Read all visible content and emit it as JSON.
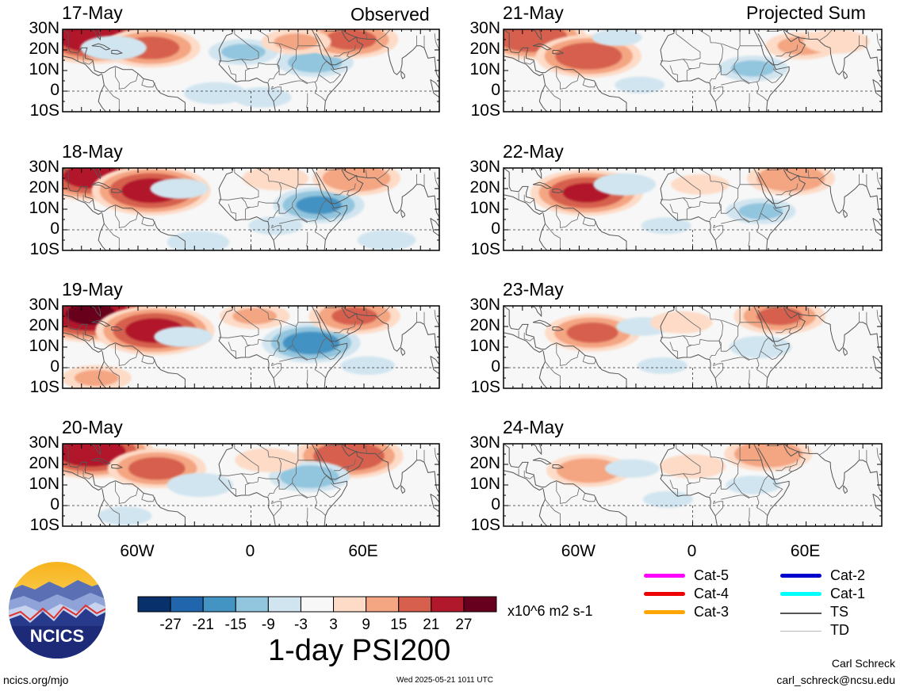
{
  "headers": {
    "left": "Observed",
    "right": "Projected Sum"
  },
  "lat_labels": [
    "30N",
    "20N",
    "10N",
    "0",
    "10S"
  ],
  "lon_labels": [
    "60W",
    "0",
    "60E"
  ],
  "panels": [
    {
      "date": "17-May",
      "blobs": [
        {
          "lon": -84,
          "lat": 26,
          "v": 25
        },
        {
          "lon": -53,
          "lat": 21,
          "v": 17
        },
        {
          "lon": -4,
          "lat": 19,
          "v": -9
        },
        {
          "lon": 34,
          "lat": 14,
          "v": -11
        },
        {
          "lon": 53,
          "lat": 25,
          "v": 16
        },
        {
          "lon": -19,
          "lat": -1,
          "v": -7
        },
        {
          "lon": 6,
          "lat": -3,
          "v": -6
        },
        {
          "lon": -73,
          "lat": 21,
          "v": -8
        },
        {
          "lon": 24,
          "lat": 24,
          "v": 9
        }
      ]
    },
    {
      "date": "18-May",
      "blobs": [
        {
          "lon": -84,
          "lat": 26,
          "v": 23
        },
        {
          "lon": -53,
          "lat": 19,
          "v": 23
        },
        {
          "lon": 36,
          "lat": 12,
          "v": -15
        },
        {
          "lon": 56,
          "lat": 25,
          "v": 14
        },
        {
          "lon": -38,
          "lat": 20,
          "v": -6
        },
        {
          "lon": -28,
          "lat": -6,
          "v": -7
        },
        {
          "lon": 72,
          "lat": -5,
          "v": -6
        },
        {
          "lon": 13,
          "lat": 2,
          "v": -5
        },
        {
          "lon": 13,
          "lat": 25,
          "v": 8
        }
      ]
    },
    {
      "date": "19-May",
      "blobs": [
        {
          "lon": -85,
          "lat": 26,
          "v": 27
        },
        {
          "lon": -51,
          "lat": 18,
          "v": 23
        },
        {
          "lon": 32,
          "lat": 12,
          "v": -17
        },
        {
          "lon": 55,
          "lat": 25,
          "v": 15
        },
        {
          "lon": -36,
          "lat": 15,
          "v": -6
        },
        {
          "lon": -82,
          "lat": -5,
          "v": 9
        },
        {
          "lon": 2,
          "lat": 25,
          "v": 9
        },
        {
          "lon": 62,
          "lat": 1,
          "v": -5
        }
      ]
    },
    {
      "date": "20-May",
      "blobs": [
        {
          "lon": -85,
          "lat": 26,
          "v": 25
        },
        {
          "lon": -50,
          "lat": 18,
          "v": 17
        },
        {
          "lon": 52,
          "lat": 24,
          "v": 20
        },
        {
          "lon": -27,
          "lat": 10,
          "v": -8
        },
        {
          "lon": 31,
          "lat": 14,
          "v": -12
        },
        {
          "lon": 9,
          "lat": 22,
          "v": 8
        },
        {
          "lon": -67,
          "lat": -5,
          "v": -5
        }
      ]
    },
    {
      "date": "21-May",
      "blobs": [
        {
          "lon": -85,
          "lat": 26,
          "v": 20
        },
        {
          "lon": -55,
          "lat": 17,
          "v": 19
        },
        {
          "lon": 32,
          "lat": 11,
          "v": -9
        },
        {
          "lon": 58,
          "lat": 22,
          "v": 10
        },
        {
          "lon": -40,
          "lat": 26,
          "v": -4
        },
        {
          "lon": 76,
          "lat": 24,
          "v": 8
        },
        {
          "lon": -28,
          "lat": 3,
          "v": -4
        }
      ]
    },
    {
      "date": "22-May",
      "blobs": [
        {
          "lon": -56,
          "lat": 18,
          "v": 21
        },
        {
          "lon": 36,
          "lat": 9,
          "v": -9
        },
        {
          "lon": 52,
          "lat": 25,
          "v": 14
        },
        {
          "lon": -36,
          "lat": 22,
          "v": -7
        },
        {
          "lon": 4,
          "lat": 22,
          "v": 6
        },
        {
          "lon": -14,
          "lat": 2,
          "v": -4
        }
      ]
    },
    {
      "date": "23-May",
      "blobs": [
        {
          "lon": -53,
          "lat": 17,
          "v": 16
        },
        {
          "lon": 46,
          "lat": 25,
          "v": 15
        },
        {
          "lon": 36,
          "lat": 10,
          "v": -7
        },
        {
          "lon": -26,
          "lat": 20,
          "v": -5
        },
        {
          "lon": -6,
          "lat": 22,
          "v": 7
        },
        {
          "lon": -16,
          "lat": 1,
          "v": -4
        }
      ]
    },
    {
      "date": "24-May",
      "blobs": [
        {
          "lon": -55,
          "lat": 17,
          "v": 13
        },
        {
          "lon": 40,
          "lat": 25,
          "v": 14
        },
        {
          "lon": 0,
          "lat": 19,
          "v": 8
        },
        {
          "lon": -32,
          "lat": 18,
          "v": -5
        },
        {
          "lon": 32,
          "lat": 10,
          "v": -5
        },
        {
          "lon": -13,
          "lat": 3,
          "v": -4
        }
      ]
    }
  ],
  "colorbar": {
    "ticks": [
      "-27",
      "-21",
      "-15",
      "-9",
      "-3",
      "3",
      "9",
      "15",
      "21",
      "27"
    ],
    "colors": [
      "#08306b",
      "#2166ac",
      "#4393c3",
      "#92c5de",
      "#d1e5f0",
      "#f7f7f7",
      "#fddbc7",
      "#f4a582",
      "#d6604d",
      "#b2182b",
      "#67001f"
    ],
    "units": "x10^6 m2 s-1",
    "title": "1-day PSI200"
  },
  "legend": {
    "items": [
      {
        "label": "Cat-5",
        "color": "#ff00ff"
      },
      {
        "label": "Cat-4",
        "color": "#ee0000"
      },
      {
        "label": "Cat-3",
        "color": "#ffa500"
      },
      {
        "label": "Cat-2",
        "color": "#0000cc"
      },
      {
        "label": "Cat-1",
        "color": "#00ffff"
      },
      {
        "label": "TS",
        "color": "#555555"
      },
      {
        "label": "TD",
        "color": "#bbbbbb"
      }
    ]
  },
  "logo": {
    "text": "NCICS"
  },
  "footer": {
    "url": "ncics.org/mjo",
    "timestamp": "Wed 2025-05-21 1011 UTC",
    "author": "Carl Schreck",
    "email": "carl_schreck@ncsu.edu"
  }
}
